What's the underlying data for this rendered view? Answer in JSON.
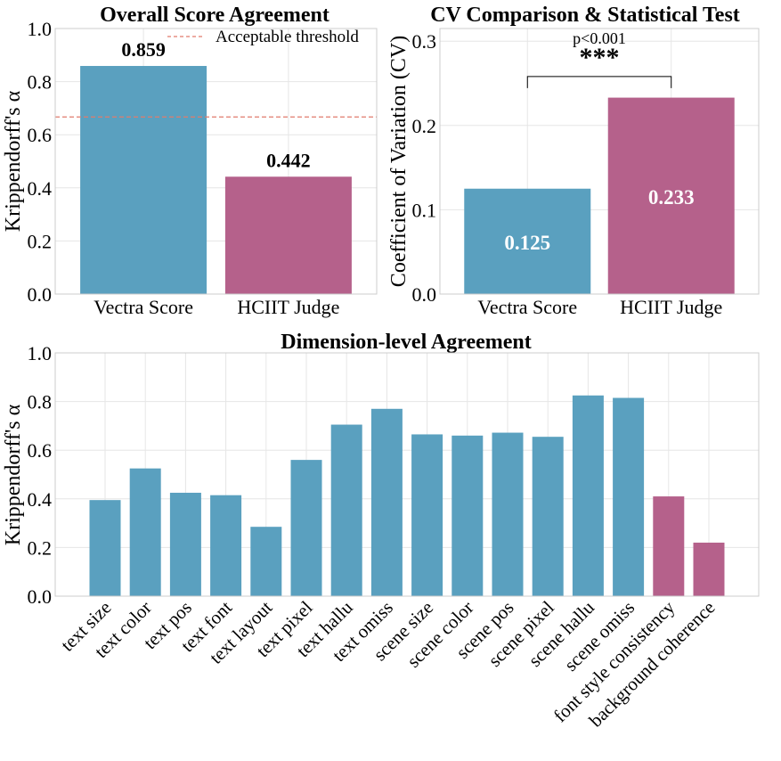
{
  "colors": {
    "blue": "#5aa0bf",
    "magenta": "#b5618b",
    "threshold": "#e07b6c"
  },
  "chart_data": [
    {
      "id": "overall",
      "type": "bar",
      "title": "Overall Score Agreement",
      "ylabel": "Krippendorff's α",
      "xlabel": "",
      "ylim": [
        0,
        1.0
      ],
      "yticks": [
        "0.0",
        "0.2",
        "0.4",
        "0.6",
        "0.8",
        "1.0"
      ],
      "categories": [
        "Vectra Score",
        "HCIIT Judge"
      ],
      "values": [
        0.859,
        0.442
      ],
      "value_labels": [
        "0.859",
        "0.442"
      ],
      "bar_colors": [
        "blue",
        "magenta"
      ],
      "threshold": {
        "value": 0.667,
        "label": "Acceptable threshold",
        "style": "dashed"
      },
      "legend_position": "top-right",
      "grid": true
    },
    {
      "id": "cv",
      "type": "bar",
      "title": "CV Comparison & Statistical Test",
      "ylabel": "Coefficient of Variation (CV)",
      "xlabel": "",
      "ylim": [
        0,
        0.315
      ],
      "yticks": [
        "0.0",
        "0.1",
        "0.2",
        "0.3"
      ],
      "categories": [
        "Vectra Score",
        "HCIIT Judge"
      ],
      "values": [
        0.125,
        0.233
      ],
      "value_labels": [
        "0.125",
        "0.233"
      ],
      "bar_colors": [
        "blue",
        "magenta"
      ],
      "significance": {
        "stars": "***",
        "p_text": "p<0.001",
        "bracket_value": 0.258
      },
      "grid": true
    },
    {
      "id": "dimension",
      "type": "bar",
      "title": "Dimension-level Agreement",
      "ylabel": "Krippendorff's α",
      "xlabel": "",
      "ylim": [
        0,
        1.0
      ],
      "yticks": [
        "0.0",
        "0.2",
        "0.4",
        "0.6",
        "0.8",
        "1.0"
      ],
      "categories": [
        "text size",
        "text color",
        "text pos",
        "text font",
        "text layout",
        "text pixel",
        "text hallu",
        "text omiss",
        "scene size",
        "scene color",
        "scene pos",
        "scene pixel",
        "scene hallu",
        "scene omiss",
        "font style consistency",
        "background coherence"
      ],
      "values": [
        0.395,
        0.525,
        0.425,
        0.415,
        0.285,
        0.56,
        0.705,
        0.77,
        0.665,
        0.66,
        0.672,
        0.655,
        0.825,
        0.815,
        0.41,
        0.22
      ],
      "bar_colors": [
        "blue",
        "blue",
        "blue",
        "blue",
        "blue",
        "blue",
        "blue",
        "blue",
        "blue",
        "blue",
        "blue",
        "blue",
        "blue",
        "blue",
        "magenta",
        "magenta"
      ],
      "grid": true
    }
  ]
}
